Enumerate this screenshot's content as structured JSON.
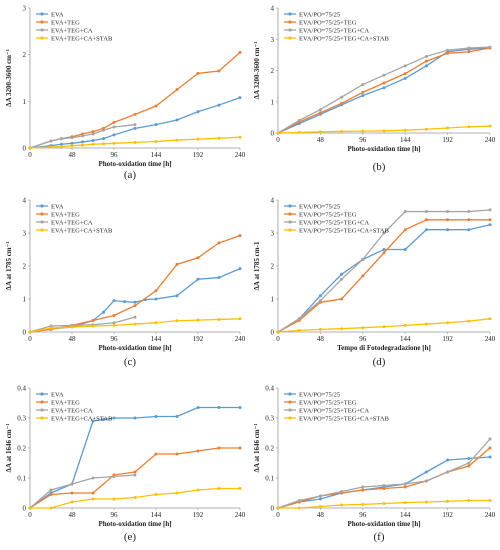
{
  "colors": {
    "blue": "#5b9bd5",
    "orange": "#ed7d31",
    "gray": "#a5a5a5",
    "yellow": "#ffc000",
    "axis": "#999999"
  },
  "chart_data": [
    {
      "panel": "a",
      "type": "line",
      "caption": "(a)",
      "xlabel": "Photo-oxidation time [h]",
      "ylabel": "ΔA 3200-3600 cm⁻¹",
      "xlim": [
        0,
        240
      ],
      "ylim": [
        0,
        3
      ],
      "xticks": [
        0,
        48,
        96,
        144,
        192,
        240
      ],
      "yticks": [
        0,
        1,
        2,
        3
      ],
      "legend_position": "top-left",
      "series": [
        {
          "name": "EVA",
          "color": "blue",
          "x": [
            0,
            24,
            36,
            48,
            60,
            72,
            84,
            96,
            120,
            144,
            168,
            192,
            216,
            240
          ],
          "y": [
            0,
            0.05,
            0.08,
            0.1,
            0.13,
            0.16,
            0.2,
            0.28,
            0.42,
            0.5,
            0.6,
            0.78,
            0.92,
            1.08
          ]
        },
        {
          "name": "EVA+TEG",
          "color": "orange",
          "x": [
            0,
            24,
            36,
            48,
            60,
            72,
            84,
            96,
            120,
            144,
            168,
            192,
            216,
            240
          ],
          "y": [
            0,
            0.15,
            0.2,
            0.24,
            0.3,
            0.35,
            0.42,
            0.55,
            0.72,
            0.9,
            1.25,
            1.6,
            1.65,
            2.05
          ]
        },
        {
          "name": "EVA+TEG+CA",
          "color": "gray",
          "x": [
            0,
            24,
            36,
            48,
            60,
            72,
            84,
            96,
            120
          ],
          "y": [
            0,
            0.15,
            0.2,
            0.22,
            0.26,
            0.3,
            0.38,
            0.45,
            0.5
          ]
        },
        {
          "name": "EVA+TEG+CA+STAB",
          "color": "yellow",
          "x": [
            0,
            24,
            36,
            48,
            60,
            72,
            84,
            96,
            120,
            144,
            168,
            192,
            216,
            240
          ],
          "y": [
            0,
            0.02,
            0.03,
            0.05,
            0.06,
            0.08,
            0.09,
            0.1,
            0.12,
            0.14,
            0.17,
            0.19,
            0.21,
            0.23
          ]
        }
      ]
    },
    {
      "panel": "b",
      "type": "line",
      "caption": "(b)",
      "xlabel": "Photo-oxidation time [h]",
      "ylabel": "ΔA 3200-3600 cm⁻¹",
      "xlim": [
        0,
        240
      ],
      "ylim": [
        0,
        4
      ],
      "xticks": [
        0,
        48,
        96,
        144,
        192,
        240
      ],
      "yticks": [
        0,
        1,
        2,
        3,
        4
      ],
      "legend_position": "top-left",
      "series": [
        {
          "name": "EVA/PO=75/25",
          "color": "blue",
          "x": [
            0,
            24,
            48,
            72,
            96,
            120,
            144,
            168,
            192,
            216,
            240
          ],
          "y": [
            0,
            0.3,
            0.6,
            0.9,
            1.2,
            1.45,
            1.75,
            2.15,
            2.6,
            2.68,
            2.72
          ]
        },
        {
          "name": "EVA/PO=75/25+TEG",
          "color": "orange",
          "x": [
            0,
            24,
            48,
            72,
            96,
            120,
            144,
            168,
            192,
            216,
            240
          ],
          "y": [
            0,
            0.35,
            0.65,
            0.95,
            1.3,
            1.6,
            1.9,
            2.3,
            2.55,
            2.6,
            2.72
          ]
        },
        {
          "name": "EVA/PO=75/25+TEG+CA",
          "color": "gray",
          "x": [
            0,
            24,
            48,
            72,
            96,
            120,
            144,
            168,
            192,
            216,
            240
          ],
          "y": [
            0,
            0.4,
            0.75,
            1.15,
            1.55,
            1.85,
            2.15,
            2.45,
            2.65,
            2.72,
            2.75
          ]
        },
        {
          "name": "EVA/PO=75/25+TEG+CA+STAB",
          "color": "yellow",
          "x": [
            0,
            24,
            48,
            72,
            96,
            120,
            144,
            168,
            192,
            216,
            240
          ],
          "y": [
            0,
            0.02,
            0.04,
            0.05,
            0.06,
            0.07,
            0.09,
            0.12,
            0.16,
            0.2,
            0.22
          ]
        }
      ]
    },
    {
      "panel": "c",
      "type": "line",
      "caption": "(c)",
      "xlabel": "Photo-oxidation time [h]",
      "ylabel": "ΔA at 1785 cm⁻¹",
      "xlim": [
        0,
        240
      ],
      "ylim": [
        0,
        4
      ],
      "xticks": [
        0,
        48,
        96,
        144,
        192,
        240
      ],
      "yticks": [
        0,
        1,
        2,
        3,
        4
      ],
      "legend_position": "top-left",
      "series": [
        {
          "name": "EVA",
          "color": "blue",
          "x": [
            0,
            24,
            48,
            72,
            84,
            96,
            108,
            120,
            132,
            144,
            168,
            192,
            216,
            240
          ],
          "y": [
            0,
            0.1,
            0.15,
            0.35,
            0.6,
            0.95,
            0.92,
            0.9,
            0.98,
            1.0,
            1.1,
            1.6,
            1.65,
            1.92
          ]
        },
        {
          "name": "EVA+TEG",
          "color": "orange",
          "x": [
            0,
            24,
            48,
            72,
            96,
            120,
            144,
            168,
            192,
            216,
            240
          ],
          "y": [
            0,
            0.08,
            0.2,
            0.35,
            0.5,
            0.8,
            1.25,
            2.05,
            2.25,
            2.7,
            2.92
          ]
        },
        {
          "name": "EVA+TEG+CA",
          "color": "gray",
          "x": [
            0,
            24,
            48,
            72,
            96,
            120
          ],
          "y": [
            0,
            0.18,
            0.2,
            0.22,
            0.28,
            0.45
          ]
        },
        {
          "name": "EVA+TEG+CA+STAB",
          "color": "yellow",
          "x": [
            0,
            24,
            48,
            72,
            96,
            120,
            144,
            168,
            192,
            216,
            240
          ],
          "y": [
            0,
            0.12,
            0.15,
            0.18,
            0.2,
            0.24,
            0.28,
            0.34,
            0.36,
            0.38,
            0.4
          ]
        }
      ]
    },
    {
      "panel": "d",
      "type": "line",
      "caption": "(d)",
      "xlabel": "Tempo di Fotodegradazione [h]",
      "ylabel": "ΔA at 1785 cm-1",
      "xlim": [
        0,
        240
      ],
      "ylim": [
        0,
        4
      ],
      "xticks": [
        0,
        48,
        96,
        144,
        192,
        240
      ],
      "yticks": [
        0,
        1,
        2,
        3,
        4
      ],
      "legend_position": "top-left",
      "series": [
        {
          "name": "EVA/PO=75/25",
          "color": "blue",
          "x": [
            0,
            24,
            48,
            72,
            96,
            120,
            144,
            168,
            192,
            216,
            240
          ],
          "y": [
            0,
            0.4,
            1.1,
            1.75,
            2.2,
            2.5,
            2.5,
            3.1,
            3.1,
            3.1,
            3.25
          ]
        },
        {
          "name": "EVA/PO=75/25+TEG",
          "color": "orange",
          "x": [
            0,
            24,
            48,
            72,
            96,
            120,
            144,
            168,
            192,
            216,
            240
          ],
          "y": [
            0,
            0.35,
            0.9,
            1.0,
            1.7,
            2.4,
            3.1,
            3.4,
            3.4,
            3.4,
            3.4
          ]
        },
        {
          "name": "EVA/PO=75/25+TEG+CA",
          "color": "gray",
          "x": [
            0,
            24,
            48,
            72,
            96,
            120,
            144,
            168,
            192,
            216,
            240
          ],
          "y": [
            0,
            0.4,
            0.95,
            1.6,
            2.2,
            3.0,
            3.65,
            3.65,
            3.65,
            3.65,
            3.7
          ]
        },
        {
          "name": "EVA/PO=75/25+TEG+CA+STAB",
          "color": "yellow",
          "x": [
            0,
            24,
            48,
            72,
            96,
            120,
            144,
            168,
            192,
            216,
            240
          ],
          "y": [
            0,
            0.05,
            0.08,
            0.1,
            0.13,
            0.16,
            0.2,
            0.24,
            0.28,
            0.33,
            0.4
          ]
        }
      ]
    },
    {
      "panel": "e",
      "type": "line",
      "caption": "(e)",
      "xlabel": "Photo-oxidation time [h]",
      "ylabel": "ΔA at 1646 cm⁻¹",
      "xlim": [
        0,
        240
      ],
      "ylim": [
        0,
        0.4
      ],
      "xticks": [
        0,
        48,
        96,
        144,
        192,
        240
      ],
      "yticks": [
        0,
        0.1,
        0.2,
        0.3,
        0.4
      ],
      "legend_position": "top-left",
      "series": [
        {
          "name": "EVA",
          "color": "blue",
          "x": [
            0,
            24,
            48,
            72,
            84,
            96,
            120,
            144,
            168,
            192,
            216,
            240
          ],
          "y": [
            0,
            0.05,
            0.08,
            0.29,
            0.295,
            0.3,
            0.3,
            0.305,
            0.305,
            0.335,
            0.335,
            0.335
          ]
        },
        {
          "name": "EVA+TEG",
          "color": "orange",
          "x": [
            0,
            24,
            48,
            72,
            96,
            120,
            144,
            168,
            192,
            216,
            240
          ],
          "y": [
            0,
            0.045,
            0.05,
            0.05,
            0.11,
            0.12,
            0.18,
            0.18,
            0.19,
            0.2,
            0.2
          ]
        },
        {
          "name": "EVA+TEG+CA",
          "color": "gray",
          "x": [
            0,
            24,
            48,
            72,
            96,
            120
          ],
          "y": [
            0,
            0.06,
            0.08,
            0.1,
            0.105,
            0.11
          ]
        },
        {
          "name": "EVA+TEG+CA+STAB",
          "color": "yellow",
          "x": [
            0,
            24,
            48,
            72,
            96,
            120,
            144,
            168,
            192,
            216,
            240
          ],
          "y": [
            0,
            0.0,
            0.02,
            0.03,
            0.03,
            0.035,
            0.045,
            0.05,
            0.06,
            0.065,
            0.065
          ]
        }
      ]
    },
    {
      "panel": "f",
      "type": "line",
      "caption": "(f)",
      "xlabel": "Photo-oxidation time [h]",
      "ylabel": "ΔA at 1646 cm⁻¹",
      "xlim": [
        0,
        240
      ],
      "ylim": [
        0,
        0.4
      ],
      "xticks": [
        0,
        48,
        96,
        144,
        192,
        240
      ],
      "yticks": [
        0,
        0.1,
        0.2,
        0.3,
        0.4
      ],
      "legend_position": "top-left",
      "series": [
        {
          "name": "EVA/PO=75/25",
          "color": "blue",
          "x": [
            0,
            24,
            48,
            72,
            96,
            120,
            144,
            168,
            192,
            216,
            240
          ],
          "y": [
            0,
            0.02,
            0.03,
            0.05,
            0.06,
            0.07,
            0.08,
            0.12,
            0.16,
            0.165,
            0.17
          ]
        },
        {
          "name": "EVA/PO=75/25+TEG",
          "color": "orange",
          "x": [
            0,
            24,
            48,
            72,
            96,
            120,
            144,
            168,
            192,
            216,
            240
          ],
          "y": [
            0,
            0.02,
            0.04,
            0.05,
            0.06,
            0.065,
            0.07,
            0.09,
            0.12,
            0.14,
            0.2
          ]
        },
        {
          "name": "EVA/PO=75/25+TEG+CA",
          "color": "gray",
          "x": [
            0,
            24,
            48,
            72,
            96,
            120,
            144,
            168,
            192,
            216,
            240
          ],
          "y": [
            0,
            0.025,
            0.04,
            0.055,
            0.07,
            0.075,
            0.08,
            0.09,
            0.12,
            0.15,
            0.23
          ]
        },
        {
          "name": "EVA/PO=75/25+TEG+CA+STAB",
          "color": "yellow",
          "x": [
            0,
            24,
            48,
            72,
            96,
            120,
            144,
            168,
            192,
            216,
            240
          ],
          "y": [
            0,
            0.0,
            0.005,
            0.01,
            0.012,
            0.015,
            0.018,
            0.02,
            0.022,
            0.025,
            0.025
          ]
        }
      ]
    }
  ]
}
